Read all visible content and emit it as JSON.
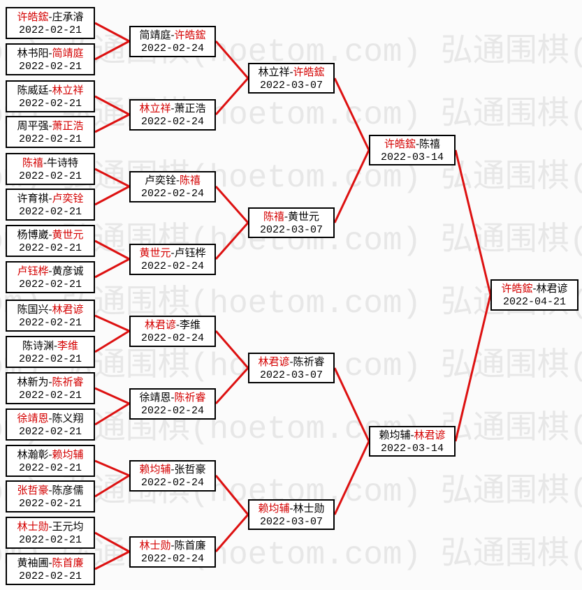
{
  "watermark": {
    "tile": "弘通围棋(hoetom.com)"
  },
  "colors": {
    "line": "#dd1111",
    "winner": "#d40000",
    "text": "#000000",
    "border": "#000000",
    "box_bg": "#ffffff",
    "page_bg": "#fbfbfb",
    "watermark": "#e7e7e7"
  },
  "bracket": {
    "separator": "-",
    "rounds": [
      {
        "date": "2022-02-21",
        "matches": [
          {
            "p1": "许皓鋐",
            "p2": "庄承濬",
            "winner": "p1"
          },
          {
            "p1": "林书阳",
            "p2": "简靖庭",
            "winner": "p2"
          },
          {
            "p1": "陈威廷",
            "p2": "林立祥",
            "winner": "p2"
          },
          {
            "p1": "周平强",
            "p2": "萧正浩",
            "winner": "p2"
          },
          {
            "p1": "陈禧",
            "p2": "牛诗特",
            "winner": "p1"
          },
          {
            "p1": "许育祺",
            "p2": "卢奕铨",
            "winner": "p2"
          },
          {
            "p1": "杨博崴",
            "p2": "黄世元",
            "winner": "p2"
          },
          {
            "p1": "卢钰桦",
            "p2": "黄彦诚",
            "winner": "p1"
          },
          {
            "p1": "陈国兴",
            "p2": "林君谚",
            "winner": "p2"
          },
          {
            "p1": "陈诗渊",
            "p2": "李维",
            "winner": "p2"
          },
          {
            "p1": "林新为",
            "p2": "陈祈睿",
            "winner": "p2"
          },
          {
            "p1": "徐靖恩",
            "p2": "陈义翔",
            "winner": "p1"
          },
          {
            "p1": "林瀚彰",
            "p2": "赖均辅",
            "winner": "p2"
          },
          {
            "p1": "张哲豪",
            "p2": "陈彦儒",
            "winner": "p1"
          },
          {
            "p1": "林士勋",
            "p2": "王元均",
            "winner": "p1"
          },
          {
            "p1": "黄袖圃",
            "p2": "陈首廉",
            "winner": "p2"
          }
        ]
      },
      {
        "date": "2022-02-24",
        "matches": [
          {
            "p1": "简靖庭",
            "p2": "许皓鋐",
            "winner": "p2"
          },
          {
            "p1": "林立祥",
            "p2": "萧正浩",
            "winner": "p1"
          },
          {
            "p1": "卢奕铨",
            "p2": "陈禧",
            "winner": "p2"
          },
          {
            "p1": "黄世元",
            "p2": "卢钰桦",
            "winner": "p1"
          },
          {
            "p1": "林君谚",
            "p2": "李维",
            "winner": "p1"
          },
          {
            "p1": "徐靖恩",
            "p2": "陈祈睿",
            "winner": "p2"
          },
          {
            "p1": "赖均辅",
            "p2": "张哲豪",
            "winner": "p1"
          },
          {
            "p1": "林士勋",
            "p2": "陈首廉",
            "winner": "p1"
          }
        ]
      },
      {
        "date": "2022-03-07",
        "matches": [
          {
            "p1": "林立祥",
            "p2": "许皓鋐",
            "winner": "p2"
          },
          {
            "p1": "陈禧",
            "p2": "黄世元",
            "winner": "p1"
          },
          {
            "p1": "林君谚",
            "p2": "陈祈睿",
            "winner": "p1"
          },
          {
            "p1": "赖均辅",
            "p2": "林士勋",
            "winner": "p1"
          }
        ]
      },
      {
        "date": "2022-03-14",
        "matches": [
          {
            "p1": "许皓鋐",
            "p2": "陈禧",
            "winner": "p1"
          },
          {
            "p1": "赖均辅",
            "p2": "林君谚",
            "winner": "p2"
          }
        ]
      },
      {
        "date": "2022-04-21",
        "matches": [
          {
            "p1": "许皓鋐",
            "p2": "林君谚",
            "winner": "p1"
          }
        ]
      }
    ]
  }
}
